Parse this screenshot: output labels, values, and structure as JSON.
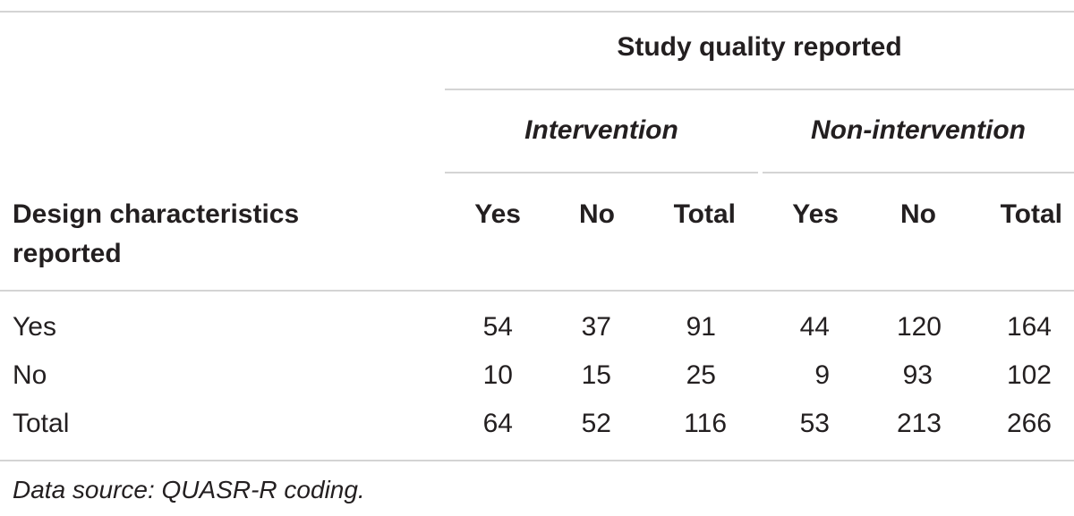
{
  "table": {
    "super_header": "Study quality reported",
    "group_headers": [
      "Intervention",
      "Non-intervention"
    ],
    "row_header_label_line1": "Design characteristics",
    "row_header_label_line2": "reported",
    "column_headers": [
      "Yes",
      "No",
      "Total",
      "Yes",
      "No",
      "Total"
    ],
    "rows": [
      {
        "label": "Yes",
        "values": [
          "54",
          "37",
          "91",
          "44",
          "120",
          "164"
        ]
      },
      {
        "label": "No",
        "values": [
          "10",
          "15",
          "25",
          "9",
          "93",
          "102"
        ]
      },
      {
        "label": "Total",
        "values": [
          "64",
          "52",
          "116",
          "53",
          "213",
          "266"
        ]
      }
    ],
    "footnote": "Data source: QUASR-R coding."
  }
}
